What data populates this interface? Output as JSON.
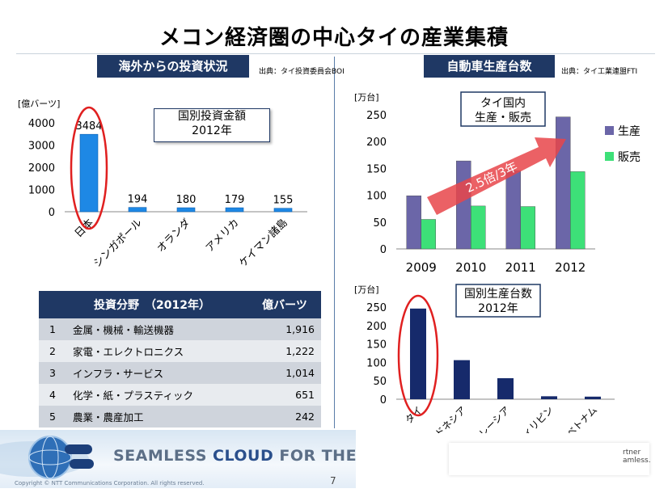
{
  "page": {
    "title": "メコン経済圏の中心タイの産業集積",
    "page_number": "7"
  },
  "left": {
    "header": "海外からの投資状況",
    "source": "出典：タイ投資委員会BOI",
    "callout": [
      "国別投資金額",
      "2012年"
    ]
  },
  "right": {
    "header": "自動車生産台数",
    "source": "出典：タイ工業連盟FTI"
  },
  "footer": {
    "banner_gray": "SEAMLESS ",
    "banner_blue": "CLOUD",
    "banner_gray2": " FOR THE",
    "copyright": "Copyright © NTT Communications Corporation. All rights reserved.",
    "partner_1": "rtner",
    "partner_2": "amless."
  },
  "table": {
    "header": [
      "",
      "投資分野　（2012年）",
      "億バーツ"
    ],
    "rows": [
      [
        "1",
        "金属・機械・輸送機器",
        "1,916"
      ],
      [
        "2",
        "家電・エレクトロニクス",
        "1,222"
      ],
      [
        "3",
        "インフラ・サービス",
        "1,014"
      ],
      [
        "4",
        "化学・紙・プラスティック",
        "651"
      ],
      [
        "5",
        "農業・農産加工",
        "242"
      ]
    ]
  },
  "colors": {
    "navy": "#1f3864",
    "bar_blue": "#1e88e5",
    "production": "#6b66a8",
    "sales": "#3de078",
    "dark_navy": "#162a6b",
    "highlight_red": "#e02020",
    "arrow_red": "#e8454a"
  },
  "chart_data": [
    {
      "type": "bar",
      "title": "国別投資金額 2012年",
      "ylabel": "[億バーツ]",
      "categories": [
        "日本",
        "シンガポール",
        "オランダ",
        "アメリカ",
        "ケイマン諸島"
      ],
      "values": [
        3484,
        194,
        180,
        179,
        155
      ],
      "data_labels": [
        "3484",
        "194",
        "180",
        "179",
        "155"
      ],
      "yticks": [
        "0",
        "1000",
        "2000",
        "3000",
        "4000"
      ],
      "ylim": [
        0,
        4000
      ],
      "highlight": "日本"
    },
    {
      "type": "bar",
      "title": "タイ国内 生産・販売",
      "ylabel": "[万台]",
      "categories": [
        "2009",
        "2010",
        "2011",
        "2012"
      ],
      "series": [
        {
          "name": "生産",
          "values": [
            99,
            164,
            146,
            246
          ]
        },
        {
          "name": "販売",
          "values": [
            55,
            80,
            79,
            144
          ]
        }
      ],
      "yticks": [
        "0",
        "50",
        "100",
        "150",
        "200",
        "250"
      ],
      "ylim": [
        0,
        250
      ],
      "legend": "right",
      "annotation": "2.5倍/3年"
    },
    {
      "type": "bar",
      "title": "国別生産台数 2012年",
      "ylabel": "[万台]",
      "categories": [
        "タイ",
        "インドネシア",
        "マレーシア",
        "フィリピン",
        "ベトナム"
      ],
      "values": [
        246,
        106,
        57,
        8,
        7
      ],
      "yticks": [
        "0",
        "50",
        "100",
        "150",
        "200",
        "250"
      ],
      "ylim": [
        0,
        250
      ],
      "highlight": "タイ"
    }
  ]
}
